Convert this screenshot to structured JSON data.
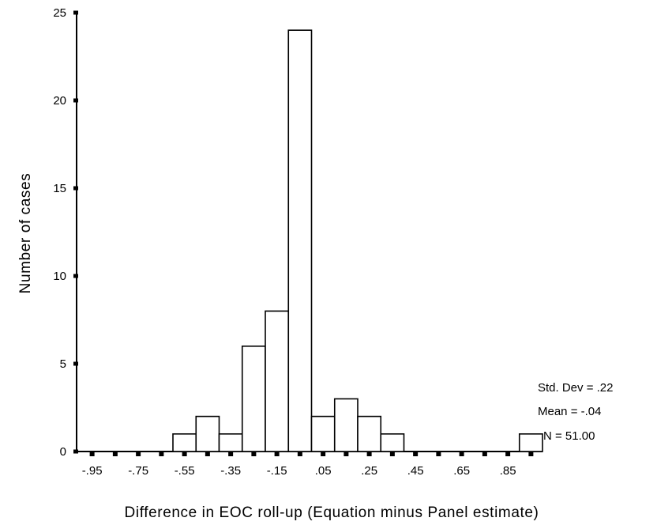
{
  "chart_data": {
    "type": "bar",
    "title": "",
    "xlabel": "Difference in EOC roll-up (Equation minus Panel estimate)",
    "ylabel": "Number of cases",
    "x_centers": [
      -0.95,
      -0.85,
      -0.75,
      -0.65,
      -0.55,
      -0.45,
      -0.35,
      -0.25,
      -0.15,
      -0.05,
      0.05,
      0.15,
      0.25,
      0.35,
      0.45,
      0.55,
      0.65,
      0.75,
      0.85,
      0.95
    ],
    "values": [
      0,
      0,
      0,
      0,
      1,
      2,
      1,
      6,
      8,
      24,
      2,
      3,
      2,
      1,
      0,
      0,
      0,
      0,
      0,
      1
    ],
    "bin_width": 0.1,
    "xlim": [
      -1.0,
      1.0
    ],
    "ylim": [
      0,
      25
    ],
    "x_tick_labels": [
      "-.95",
      "-.75",
      "-.55",
      "-.35",
      "-.15",
      ".05",
      ".25",
      ".45",
      ".65",
      ".85"
    ],
    "y_tick_labels": [
      "0",
      "5",
      "10",
      "15",
      "20",
      "25"
    ],
    "stats": {
      "std_dev": "Std. Dev = .22",
      "mean": "Mean = -.04",
      "n": "N = 51.00"
    },
    "grid": false,
    "legend": "none"
  }
}
